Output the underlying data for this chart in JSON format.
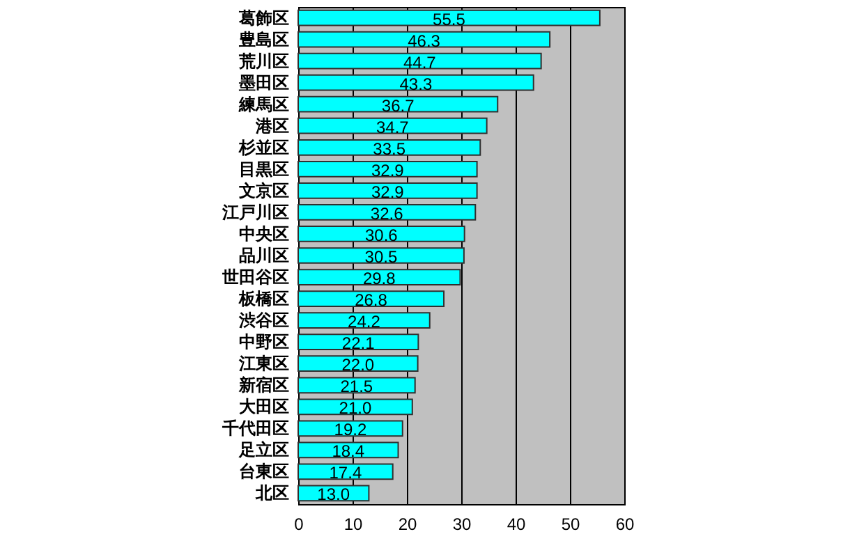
{
  "chart_data": {
    "type": "bar",
    "orientation": "horizontal",
    "categories": [
      "葛飾区",
      "豊島区",
      "荒川区",
      "墨田区",
      "練馬区",
      "港区",
      "杉並区",
      "目黒区",
      "文京区",
      "江戸川区",
      "中央区",
      "品川区",
      "世田谷区",
      "板橋区",
      "渋谷区",
      "中野区",
      "江東区",
      "新宿区",
      "大田区",
      "千代田区",
      "足立区",
      "台東区",
      "北区"
    ],
    "values": [
      55.5,
      46.3,
      44.7,
      43.3,
      36.7,
      34.7,
      33.5,
      32.9,
      32.9,
      32.6,
      30.6,
      30.5,
      29.8,
      26.8,
      24.2,
      22.1,
      22.0,
      21.5,
      21.0,
      19.2,
      18.4,
      17.4,
      13.0
    ],
    "value_labels": [
      "55.5",
      "46.3",
      "44.7",
      "43.3",
      "36.7",
      "34.7",
      "33.5",
      "32.9",
      "32.9",
      "32.6",
      "30.6",
      "30.5",
      "29.8",
      "26.8",
      "24.2",
      "22.1",
      "22.0",
      "21.5",
      "21.0",
      "19.2",
      "18.4",
      "17.4",
      "13.0"
    ],
    "color": "#00ffff",
    "xlim": [
      0,
      60
    ],
    "xticks": [
      0,
      10,
      20,
      30,
      40,
      50,
      60
    ],
    "grid": "x"
  }
}
